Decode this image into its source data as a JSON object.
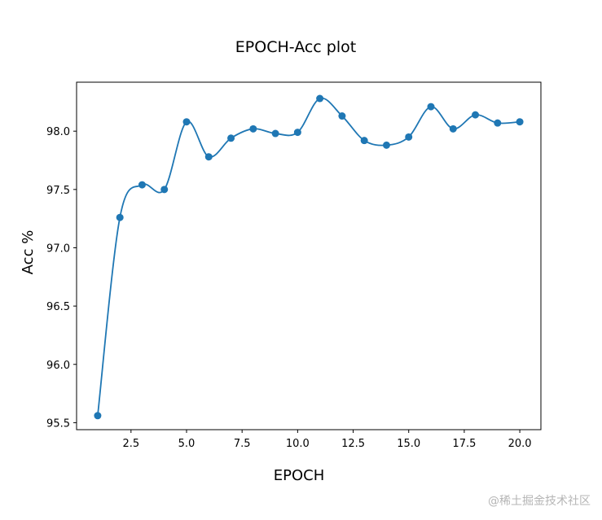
{
  "chart_data": {
    "type": "line",
    "title": "EPOCH-Acc plot",
    "xlabel": "EPOCH",
    "ylabel": "Acc %",
    "xlim": [
      0.05,
      20.95
    ],
    "ylim": [
      95.44,
      98.42
    ],
    "xticks": [
      2.5,
      5.0,
      7.5,
      10.0,
      12.5,
      15.0,
      17.5,
      20.0
    ],
    "xtick_labels": [
      "2.5",
      "5.0",
      "7.5",
      "10.0",
      "12.5",
      "15.0",
      "17.5",
      "20.0"
    ],
    "yticks": [
      95.5,
      96.0,
      96.5,
      97.0,
      97.5,
      98.0
    ],
    "ytick_labels": [
      "95.5",
      "96.0",
      "96.5",
      "97.0",
      "97.5",
      "98.0"
    ],
    "grid": false,
    "series": [
      {
        "color": "#1f77b4",
        "x": [
          1,
          2,
          3,
          4,
          5,
          6,
          7,
          8,
          9,
          10,
          11,
          12,
          13,
          14,
          15,
          16,
          17,
          18,
          19,
          20
        ],
        "y": [
          95.56,
          97.26,
          97.54,
          97.5,
          98.08,
          97.78,
          97.94,
          98.02,
          97.98,
          97.99,
          98.28,
          98.13,
          97.92,
          97.88,
          97.95,
          98.21,
          98.02,
          98.14,
          98.07,
          98.08
        ]
      }
    ]
  },
  "watermark": "@稀土掘金技术社区"
}
